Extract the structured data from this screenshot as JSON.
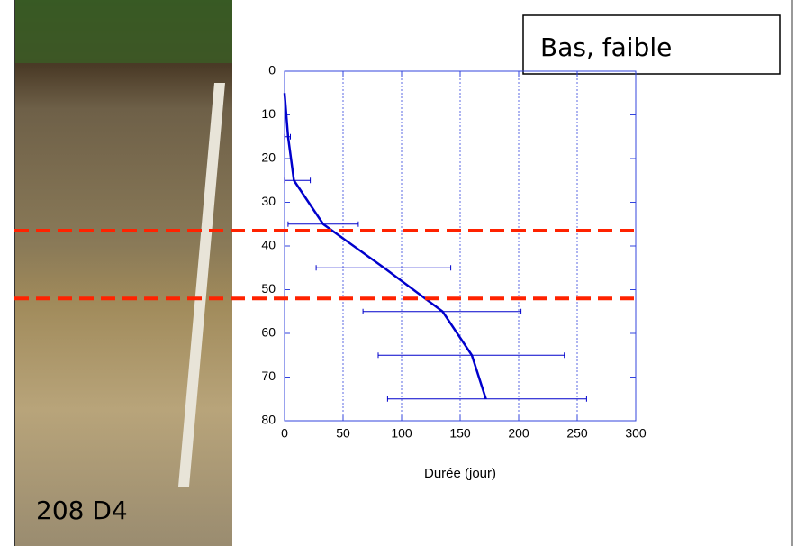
{
  "chart_data": {
    "type": "line",
    "title": "Bas, faible",
    "photo_label": "208 D4",
    "xlabel": "Durée (jour)",
    "x": [
      0,
      3,
      8,
      33,
      85,
      135,
      160,
      172
    ],
    "y": [
      5,
      15,
      25,
      35,
      45,
      55,
      65,
      75
    ],
    "xerr_low": [
      null,
      0,
      0,
      3,
      27,
      67,
      80,
      88
    ],
    "xerr_high": [
      null,
      5,
      22,
      63,
      142,
      202,
      239,
      258
    ],
    "color": "#0000cc",
    "xlim": [
      0,
      300
    ],
    "xticks": [
      0,
      50,
      100,
      150,
      200,
      250,
      300
    ],
    "ylim": [
      0,
      80
    ],
    "yticks": [
      0,
      10,
      20,
      30,
      40,
      50,
      60,
      70,
      80
    ],
    "y_inverted": true,
    "grid": true,
    "markers": [
      36.5,
      52
    ],
    "marker_color": "#ff2200"
  }
}
